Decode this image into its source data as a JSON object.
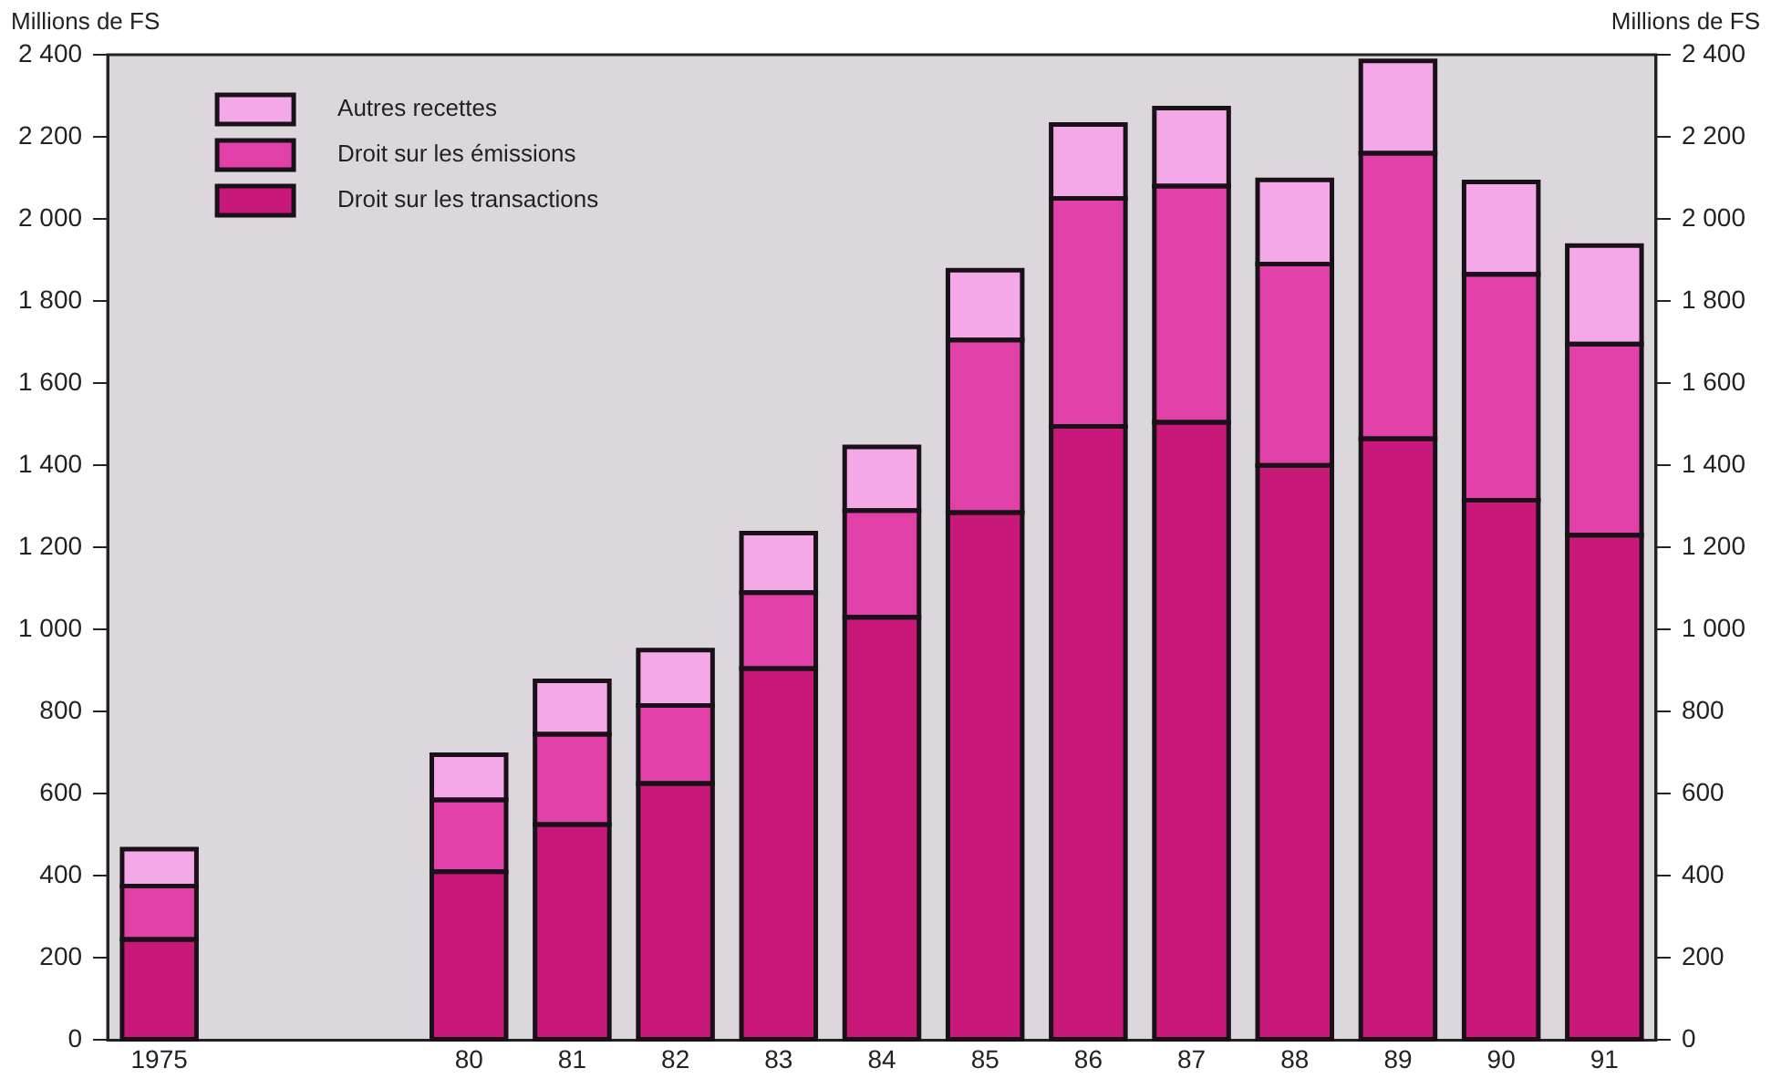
{
  "chart_data": {
    "type": "bar",
    "stacked": true,
    "ylabel": "Millions de FS",
    "y2label": "Millions de FS",
    "categories": [
      "1975",
      null,
      null,
      "80",
      "81",
      "82",
      "83",
      "84",
      "85",
      "86",
      "87",
      "88",
      "89",
      "90",
      "91"
    ],
    "series": [
      {
        "name": "Droit sur les transactions",
        "color": "#c8187a",
        "values": [
          245,
          null,
          null,
          410,
          525,
          625,
          905,
          1030,
          1285,
          1495,
          1505,
          1400,
          1465,
          1315,
          1230
        ]
      },
      {
        "name": "Droit sur les émissions",
        "color": "#e040a8",
        "values": [
          130,
          null,
          null,
          175,
          220,
          190,
          185,
          260,
          420,
          555,
          575,
          490,
          695,
          550,
          465
        ]
      },
      {
        "name": "Autres recettes",
        "color": "#f5a8e8",
        "values": [
          90,
          null,
          null,
          110,
          130,
          135,
          145,
          155,
          170,
          180,
          190,
          205,
          225,
          225,
          240
        ]
      }
    ],
    "ylim": [
      0,
      2400
    ],
    "yticks": [
      0,
      200,
      400,
      600,
      800,
      {
        "value": 1000,
        "label": "1 000"
      },
      {
        "value": 1200,
        "label": "1 200"
      },
      {
        "value": 1400,
        "label": "1 400"
      },
      {
        "value": 1600,
        "label": "1 600"
      },
      {
        "value": 1800,
        "label": "1 800"
      },
      {
        "value": 2000,
        "label": "2 000"
      },
      {
        "value": 2200,
        "label": "2 200"
      },
      {
        "value": 2400,
        "label": "2 400"
      }
    ],
    "y2lim": [
      0,
      2400
    ],
    "y2ticks": [
      0,
      200,
      400,
      600,
      800,
      {
        "value": 1000,
        "label": "1 000"
      },
      {
        "value": 1200,
        "label": "1 200"
      },
      {
        "value": 1400,
        "label": "1 400"
      },
      {
        "value": 1600,
        "label": "1 600"
      },
      {
        "value": 1800,
        "label": "1 800"
      },
      {
        "value": 2000,
        "label": "2 000"
      },
      {
        "value": 2200,
        "label": "2 200"
      },
      {
        "value": 2400,
        "label": "2 400"
      }
    ],
    "grid": false,
    "legend": "top left"
  }
}
